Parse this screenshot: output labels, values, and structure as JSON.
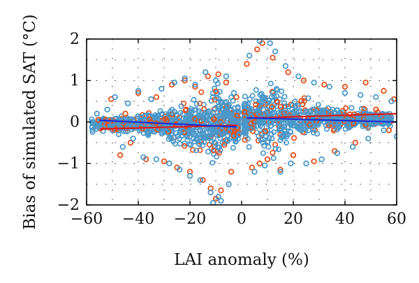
{
  "chart_data": {
    "type": "scatter",
    "title": "",
    "xlabel": "LAI anomaly (%)",
    "ylabel": "Bias of simulated SAT (°C)",
    "xlim": [
      -60,
      60
    ],
    "ylim": [
      -2,
      2
    ],
    "xticks": [
      -60,
      -40,
      -20,
      0,
      20,
      40,
      60
    ],
    "xtick_labels": [
      "−60",
      "−40",
      "−20",
      "0",
      "20",
      "40",
      "60"
    ],
    "yticks": [
      -2,
      -1,
      0,
      1,
      2
    ],
    "ytick_labels": [
      "−2",
      "−1",
      "0",
      "1",
      "2"
    ],
    "grid": "dotted",
    "legend": "none",
    "series": [
      {
        "color": "#e8501a",
        "marker": "open-circle",
        "points": [
          [
            -55.5,
            0.05
          ],
          [
            -53,
            -0.1
          ],
          [
            -50.5,
            0.55
          ],
          [
            -47,
            -0.8
          ],
          [
            -45,
            0.2
          ],
          [
            -43,
            -0.5
          ],
          [
            -40,
            0.7
          ],
          [
            -37,
            -0.9
          ],
          [
            -33,
            0.6
          ],
          [
            -30,
            -0.95
          ],
          [
            -27,
            0.9
          ],
          [
            -25,
            -1.1
          ],
          [
            -22,
            1.0
          ],
          [
            -20,
            -1.2
          ],
          [
            -18,
            0.85
          ],
          [
            -15,
            -1.4
          ],
          [
            -13,
            1.1
          ],
          [
            -12,
            -1.6
          ],
          [
            -10,
            -1.85
          ],
          [
            -9,
            1.15
          ],
          [
            -8,
            -1.65
          ],
          [
            -6,
            0.95
          ],
          [
            -4,
            -1.2
          ],
          [
            -2,
            0.6
          ],
          [
            2,
            1.4
          ],
          [
            4,
            -1.1
          ],
          [
            6,
            1.75
          ],
          [
            7,
            -1.0
          ],
          [
            8,
            1.9
          ],
          [
            10,
            -0.9
          ],
          [
            12,
            1.55
          ],
          [
            15,
            -1.15
          ],
          [
            18,
            1.2
          ],
          [
            20,
            -0.8
          ],
          [
            24,
            1.0
          ],
          [
            28,
            -0.95
          ],
          [
            32,
            0.9
          ],
          [
            36,
            -0.7
          ],
          [
            40,
            0.85
          ],
          [
            44,
            -0.5
          ],
          [
            48,
            0.95
          ],
          [
            52,
            0.3
          ],
          [
            55,
            0.75
          ],
          [
            57,
            -0.2
          ],
          [
            59,
            0.55
          ]
        ],
        "trend": [
          [
            -55,
            -0.17
          ],
          [
            -2,
            -0.08
          ],
          [
            2,
            0.09
          ],
          [
            60,
            0.2
          ]
        ]
      },
      {
        "color": "#4a98c9",
        "marker": "open-circle",
        "points": [
          [
            -56,
            0.2
          ],
          [
            -54,
            -0.05
          ],
          [
            -52,
            0.3
          ],
          [
            -50,
            -0.2
          ],
          [
            -49,
            0.6
          ],
          [
            -46,
            -0.6
          ],
          [
            -44,
            0.45
          ],
          [
            -42,
            -0.4
          ],
          [
            -40,
            0.75
          ],
          [
            -38,
            -0.85
          ],
          [
            -35,
            0.55
          ],
          [
            -33,
            -0.9
          ],
          [
            -31,
            0.8
          ],
          [
            -28,
            -1.0
          ],
          [
            -26,
            0.95
          ],
          [
            -24,
            -1.15
          ],
          [
            -22,
            1.05
          ],
          [
            -20,
            -1.3
          ],
          [
            -18,
            0.9
          ],
          [
            -16,
            -1.4
          ],
          [
            -14,
            1.2
          ],
          [
            -12,
            -1.7
          ],
          [
            -11,
            -1.95
          ],
          [
            -10,
            1.0
          ],
          [
            -9,
            -1.8
          ],
          [
            -8,
            -1.9
          ],
          [
            -6,
            1.1
          ],
          [
            -5,
            -1.5
          ],
          [
            -3,
            0.7
          ],
          [
            -1,
            -0.3
          ],
          [
            1,
            0.4
          ],
          [
            3,
            1.6
          ],
          [
            5,
            -1.2
          ],
          [
            7,
            1.95
          ],
          [
            9,
            -1.05
          ],
          [
            11,
            1.9
          ],
          [
            13,
            1.7
          ],
          [
            15,
            -1.2
          ],
          [
            17,
            1.35
          ],
          [
            19,
            -1.0
          ],
          [
            22,
            1.1
          ],
          [
            25,
            -1.0
          ],
          [
            28,
            0.95
          ],
          [
            31,
            -0.9
          ],
          [
            34,
            0.85
          ],
          [
            37,
            -0.75
          ],
          [
            40,
            0.7
          ],
          [
            43,
            -0.6
          ],
          [
            46,
            0.65
          ],
          [
            49,
            -0.4
          ],
          [
            52,
            0.6
          ],
          [
            55,
            -0.2
          ],
          [
            58,
            0.5
          ],
          [
            60,
            -0.35
          ]
        ],
        "trend": [
          [
            -55,
            0.04
          ],
          [
            -2,
            -0.12
          ],
          [
            2,
            0.1
          ],
          [
            60,
            0.0
          ]
        ]
      }
    ]
  }
}
